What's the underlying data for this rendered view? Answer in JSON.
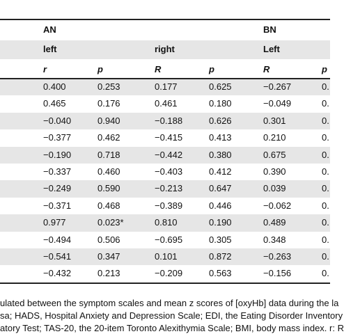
{
  "table": {
    "header": [
      [
        "AN",
        "BN"
      ],
      [
        "left",
        "right",
        "Left"
      ],
      [
        "r",
        "p",
        "R",
        "p",
        "R",
        "p"
      ]
    ],
    "rows": [
      [
        "0.400",
        "0.253",
        "0.177",
        "0.625",
        "−0.267",
        "0."
      ],
      [
        "0.465",
        "0.176",
        "0.461",
        "0.180",
        "−0.049",
        "0."
      ],
      [
        "−0.040",
        "0.940",
        "−0.188",
        "0.626",
        "0.301",
        "0."
      ],
      [
        "−0.377",
        "0.462",
        "−0.415",
        "0.413",
        "0.210",
        "0."
      ],
      [
        "−0.190",
        "0.718",
        "−0.442",
        "0.380",
        "0.675",
        "0."
      ],
      [
        "−0.337",
        "0.460",
        "−0.403",
        "0.412",
        "0.390",
        "0."
      ],
      [
        "−0.249",
        "0.590",
        "−0.213",
        "0.647",
        "0.039",
        "0."
      ],
      [
        "−0.371",
        "0.468",
        "−0.389",
        "0.446",
        "−0.062",
        "0."
      ],
      [
        "0.977",
        "0.023*",
        "0.810",
        "0.190",
        "0.489",
        "0."
      ],
      [
        "−0.494",
        "0.506",
        "−0.695",
        "0.305",
        "0.348",
        "0."
      ],
      [
        "−0.541",
        "0.347",
        "0.101",
        "0.872",
        "−0.263",
        "0."
      ],
      [
        "−0.432",
        "0.213",
        "−0.209",
        "0.563",
        "−0.156",
        "0."
      ]
    ]
  },
  "notes": [
    "ulated between the symptom scales and mean z scores of [oxyHb] data during the la",
    "sa; HADS, Hospital Anxiety and Depression Scale; EDI, the Eating Disorder Inventory",
    "atory Test; TAS-20, the 20-item Toronto Alexithymia Scale; BMI, body mass index. r: R"
  ]
}
